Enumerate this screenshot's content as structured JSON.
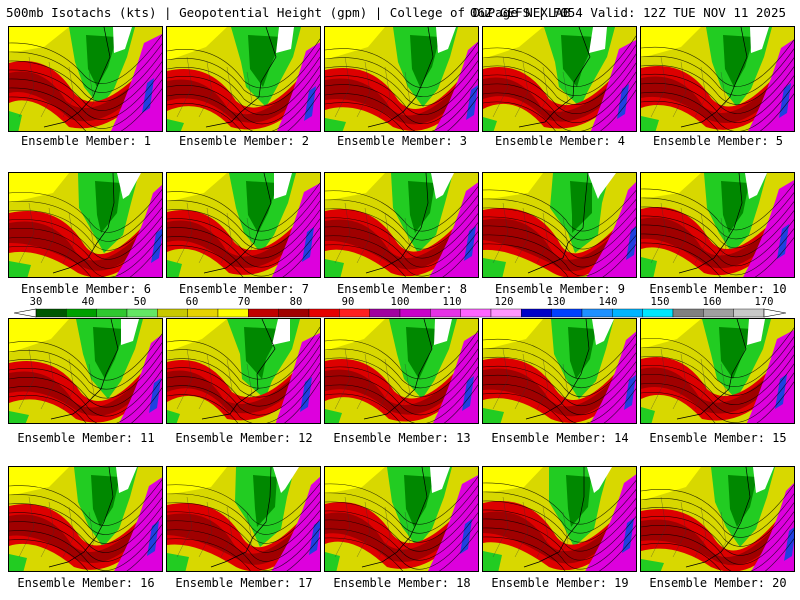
{
  "header": {
    "left_text": "500mb Isotachs (kts) | Geopotential Height (gpm) | College of DuPage NEXLAB",
    "right_text": "06Z GEFS | F054 Valid: 12Z TUE NOV 11 2025"
  },
  "panels": [
    {
      "caption": "Ensemble Member: 1"
    },
    {
      "caption": "Ensemble Member: 2"
    },
    {
      "caption": "Ensemble Member: 3"
    },
    {
      "caption": "Ensemble Member: 4"
    },
    {
      "caption": "Ensemble Member: 5"
    },
    {
      "caption": "Ensemble Member: 6"
    },
    {
      "caption": "Ensemble Member: 7"
    },
    {
      "caption": "Ensemble Member: 8"
    },
    {
      "caption": "Ensemble Member: 9"
    },
    {
      "caption": "Ensemble Member: 10"
    },
    {
      "caption": "Ensemble Member: 11"
    },
    {
      "caption": "Ensemble Member: 12"
    },
    {
      "caption": "Ensemble Member: 13"
    },
    {
      "caption": "Ensemble Member: 14"
    },
    {
      "caption": "Ensemble Member: 15"
    },
    {
      "caption": "Ensemble Member: 16"
    },
    {
      "caption": "Ensemble Member: 17"
    },
    {
      "caption": "Ensemble Member: 18"
    },
    {
      "caption": "Ensemble Member: 19"
    },
    {
      "caption": "Ensemble Member: 20"
    }
  ],
  "colorbar": {
    "labels": [
      "30",
      "40",
      "50",
      "60",
      "70",
      "80",
      "90",
      "100",
      "110",
      "120",
      "130",
      "140",
      "150",
      "160",
      "170"
    ],
    "colors": [
      "#005800",
      "#00a000",
      "#30c830",
      "#64e664",
      "#c8c800",
      "#e6d200",
      "#ffff00",
      "#c00000",
      "#a00000",
      "#e60000",
      "#ff2020",
      "#a000a0",
      "#c800c8",
      "#e632e6",
      "#ff64ff",
      "#ff96ff",
      "#0000c8",
      "#0040ff",
      "#1e90ff",
      "#00b4ff",
      "#00e6ff",
      "#808080",
      "#a0a0a0",
      "#c8c8c8"
    ]
  },
  "palette": {
    "dark_green": "#008800",
    "green": "#22cc22",
    "yellow": "#d8d800",
    "bright_yellow": "#ffff00",
    "dark_red": "#a00000",
    "red": "#dd0000",
    "magenta": "#dd00dd",
    "blue": "#2040e0",
    "white": "#ffffff"
  }
}
